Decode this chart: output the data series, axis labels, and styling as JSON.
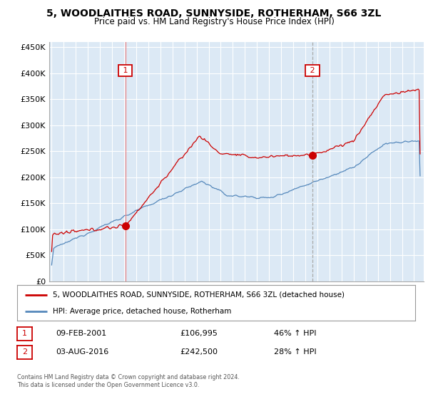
{
  "title": "5, WOODLAITHES ROAD, SUNNYSIDE, ROTHERHAM, S66 3ZL",
  "subtitle": "Price paid vs. HM Land Registry's House Price Index (HPI)",
  "legend_line1": "5, WOODLAITHES ROAD, SUNNYSIDE, ROTHERHAM, S66 3ZL (detached house)",
  "legend_line2": "HPI: Average price, detached house, Rotherham",
  "annotation1_label": "1",
  "annotation1_date": "09-FEB-2001",
  "annotation1_price": "£106,995",
  "annotation1_hpi": "46% ↑ HPI",
  "annotation2_label": "2",
  "annotation2_date": "03-AUG-2016",
  "annotation2_price": "£242,500",
  "annotation2_hpi": "28% ↑ HPI",
  "footer": "Contains HM Land Registry data © Crown copyright and database right 2024.\nThis data is licensed under the Open Government Licence v3.0.",
  "red_color": "#cc0000",
  "blue_color": "#5588bb",
  "background_color": "#ffffff",
  "chart_bg_color": "#dce9f5",
  "grid_color": "#ffffff",
  "annotation_box_color": "#cc0000",
  "vline1_color": "#ee8888",
  "vline2_color": "#aaaaaa",
  "ylim": [
    0,
    460000
  ],
  "yticks": [
    0,
    50000,
    100000,
    150000,
    200000,
    250000,
    300000,
    350000,
    400000,
    450000
  ],
  "ytick_labels": [
    "£0",
    "£50K",
    "£100K",
    "£150K",
    "£200K",
    "£250K",
    "£300K",
    "£350K",
    "£400K",
    "£450K"
  ],
  "sale1_year": 2001.1,
  "sale1_price": 106995,
  "sale2_year": 2016.6,
  "sale2_price": 242500,
  "xmin": 1994.8,
  "xmax": 2025.8
}
